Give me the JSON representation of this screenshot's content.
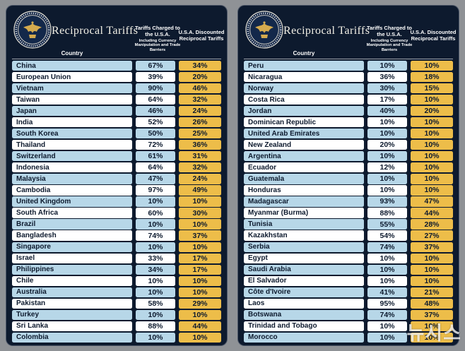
{
  "header": {
    "title": "Reciprocal Tariffs",
    "country_label": "Country",
    "charged_label": "Tariffs Charged to the U.S.A.",
    "charged_sublabel": "Including Currency Manipulation and Trade Barriers",
    "discounted_label": "U.S.A. Discounted Reciprocal Tariffs"
  },
  "watermark": "뉴시스",
  "colors": {
    "panel_bg": "#0d1a2e",
    "row_blue": "#b7d7e8",
    "row_white": "#ffffff",
    "gold": "#edbd49",
    "text": "#0d1a2e"
  },
  "chart_data": [
    {
      "type": "table",
      "title": "Reciprocal Tariffs",
      "columns": [
        "Country",
        "Tariffs Charged to the U.S.A. Including Currency Manipulation and Trade Barriers",
        "U.S.A. Discounted Reciprocal Tariffs"
      ],
      "rows": [
        [
          "China",
          "67%",
          "34%"
        ],
        [
          "European Union",
          "39%",
          "20%"
        ],
        [
          "Vietnam",
          "90%",
          "46%"
        ],
        [
          "Taiwan",
          "64%",
          "32%"
        ],
        [
          "Japan",
          "46%",
          "24%"
        ],
        [
          "India",
          "52%",
          "26%"
        ],
        [
          "South Korea",
          "50%",
          "25%"
        ],
        [
          "Thailand",
          "72%",
          "36%"
        ],
        [
          "Switzerland",
          "61%",
          "31%"
        ],
        [
          "Indonesia",
          "64%",
          "32%"
        ],
        [
          "Malaysia",
          "47%",
          "24%"
        ],
        [
          "Cambodia",
          "97%",
          "49%"
        ],
        [
          "United Kingdom",
          "10%",
          "10%"
        ],
        [
          "South Africa",
          "60%",
          "30%"
        ],
        [
          "Brazil",
          "10%",
          "10%"
        ],
        [
          "Bangladesh",
          "74%",
          "37%"
        ],
        [
          "Singapore",
          "10%",
          "10%"
        ],
        [
          "Israel",
          "33%",
          "17%"
        ],
        [
          "Philippines",
          "34%",
          "17%"
        ],
        [
          "Chile",
          "10%",
          "10%"
        ],
        [
          "Australia",
          "10%",
          "10%"
        ],
        [
          "Pakistan",
          "58%",
          "29%"
        ],
        [
          "Turkey",
          "10%",
          "10%"
        ],
        [
          "Sri Lanka",
          "88%",
          "44%"
        ],
        [
          "Colombia",
          "10%",
          "10%"
        ]
      ]
    },
    {
      "type": "table",
      "title": "Reciprocal Tariffs",
      "columns": [
        "Country",
        "Tariffs Charged to the U.S.A. Including Currency Manipulation and Trade Barriers",
        "U.S.A. Discounted Reciprocal Tariffs"
      ],
      "rows": [
        [
          "Peru",
          "10%",
          "10%"
        ],
        [
          "Nicaragua",
          "36%",
          "18%"
        ],
        [
          "Norway",
          "30%",
          "15%"
        ],
        [
          "Costa Rica",
          "17%",
          "10%"
        ],
        [
          "Jordan",
          "40%",
          "20%"
        ],
        [
          "Dominican Republic",
          "10%",
          "10%"
        ],
        [
          "United Arab Emirates",
          "10%",
          "10%"
        ],
        [
          "New Zealand",
          "20%",
          "10%"
        ],
        [
          "Argentina",
          "10%",
          "10%"
        ],
        [
          "Ecuador",
          "12%",
          "10%"
        ],
        [
          "Guatemala",
          "10%",
          "10%"
        ],
        [
          "Honduras",
          "10%",
          "10%"
        ],
        [
          "Madagascar",
          "93%",
          "47%"
        ],
        [
          "Myanmar (Burma)",
          "88%",
          "44%"
        ],
        [
          "Tunisia",
          "55%",
          "28%"
        ],
        [
          "Kazakhstan",
          "54%",
          "27%"
        ],
        [
          "Serbia",
          "74%",
          "37%"
        ],
        [
          "Egypt",
          "10%",
          "10%"
        ],
        [
          "Saudi Arabia",
          "10%",
          "10%"
        ],
        [
          "El Salvador",
          "10%",
          "10%"
        ],
        [
          "Côte d'Ivoire",
          "41%",
          "21%"
        ],
        [
          "Laos",
          "95%",
          "48%"
        ],
        [
          "Botswana",
          "74%",
          "37%"
        ],
        [
          "Trinidad and Tobago",
          "10%",
          "10%"
        ],
        [
          "Morocco",
          "10%",
          "10%"
        ]
      ]
    }
  ]
}
